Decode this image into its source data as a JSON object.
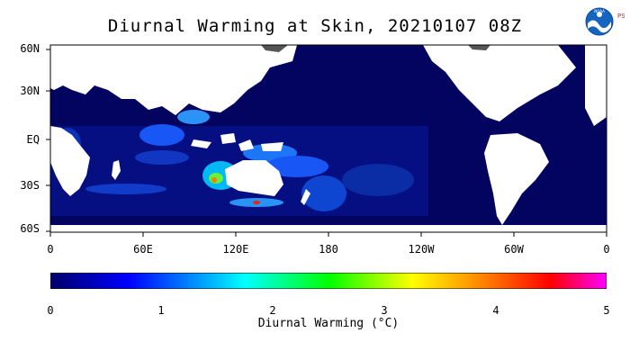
{
  "title": "Diurnal Warming at Skin, 20210107 08Z",
  "logo": {
    "icon": "noaa-psl-logo",
    "text": "PSL"
  },
  "lat_labels": [
    "60N",
    "30N",
    "EQ",
    "30S",
    "60S"
  ],
  "lon_labels": [
    "0",
    "60E",
    "120E",
    "180",
    "120W",
    "60W",
    "0"
  ],
  "colorbar": {
    "ticks": [
      "0",
      "1",
      "2",
      "3",
      "4",
      "5"
    ],
    "label": "Diurnal Warming (°C)",
    "range": [
      0,
      5
    ],
    "colors": [
      "#00006b",
      "#0000ff",
      "#00ffff",
      "#00ff00",
      "#ffff00",
      "#ff8000",
      "#ff0000",
      "#ff00ff"
    ]
  },
  "colors": {
    "ocean": "#02045f",
    "land": "#ffffff",
    "ice": "#555555"
  }
}
